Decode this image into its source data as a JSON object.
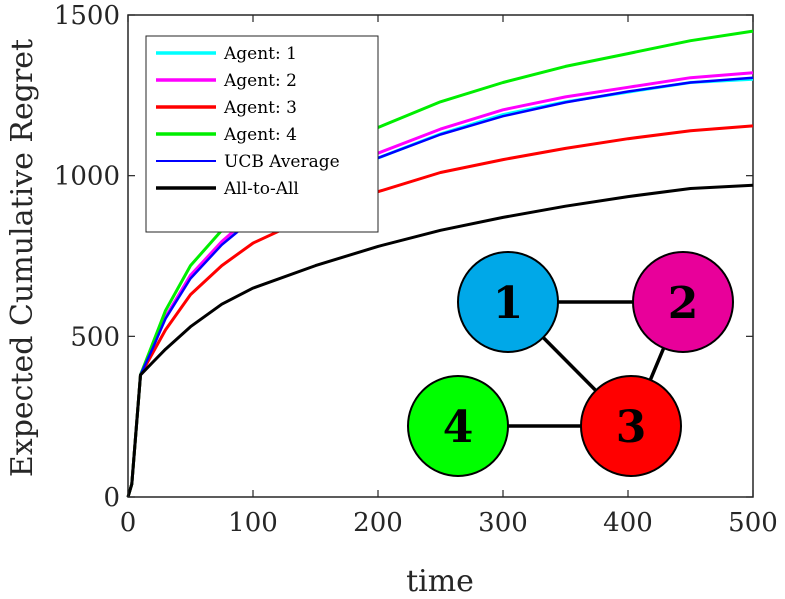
{
  "chart_data": {
    "type": "line",
    "title": "",
    "xlabel": "time",
    "ylabel": "Expected Cumulative Regret",
    "xlim": [
      0,
      500
    ],
    "ylim": [
      0,
      1500
    ],
    "xticks": [
      0,
      100,
      200,
      300,
      400,
      500
    ],
    "yticks": [
      0,
      500,
      1000,
      1500
    ],
    "grid": false,
    "legend_position": "top-left",
    "x": [
      0,
      3,
      10,
      20,
      30,
      50,
      75,
      100,
      150,
      200,
      250,
      300,
      350,
      400,
      450,
      500
    ],
    "series": [
      {
        "name": "Agent: 1",
        "color": "#00ffff",
        "values": [
          0,
          40,
          380,
          470,
          560,
          690,
          790,
          870,
          970,
          1055,
          1130,
          1190,
          1230,
          1260,
          1290,
          1300
        ]
      },
      {
        "name": "Agent: 2",
        "color": "#ff00ff",
        "values": [
          0,
          40,
          380,
          470,
          560,
          690,
          795,
          880,
          985,
          1070,
          1145,
          1205,
          1245,
          1275,
          1305,
          1320
        ]
      },
      {
        "name": "Agent: 3",
        "color": "#ff0000",
        "values": [
          0,
          40,
          380,
          450,
          520,
          630,
          720,
          790,
          880,
          950,
          1010,
          1050,
          1085,
          1115,
          1140,
          1155
        ]
      },
      {
        "name": "Agent: 4",
        "color": "#00ee00",
        "values": [
          0,
          40,
          380,
          480,
          580,
          720,
          830,
          920,
          1050,
          1150,
          1230,
          1290,
          1340,
          1380,
          1420,
          1450
        ]
      },
      {
        "name": "UCB Average",
        "color": "#0000ff",
        "values": [
          0,
          40,
          380,
          465,
          555,
          680,
          785,
          865,
          970,
          1055,
          1128,
          1185,
          1228,
          1262,
          1290,
          1305
        ]
      },
      {
        "name": "All-to-All",
        "color": "#000000",
        "values": [
          0,
          40,
          380,
          420,
          460,
          530,
          600,
          650,
          720,
          780,
          830,
          870,
          905,
          935,
          960,
          970
        ]
      }
    ],
    "graph": {
      "nodes": [
        {
          "label": "1",
          "color": "#00a8e8"
        },
        {
          "label": "2",
          "color": "#e8009a"
        },
        {
          "label": "3",
          "color": "#ff0000"
        },
        {
          "label": "4",
          "color": "#00ff00"
        }
      ],
      "edges": [
        [
          "1",
          "2"
        ],
        [
          "1",
          "3"
        ],
        [
          "2",
          "3"
        ],
        [
          "3",
          "4"
        ]
      ]
    }
  }
}
